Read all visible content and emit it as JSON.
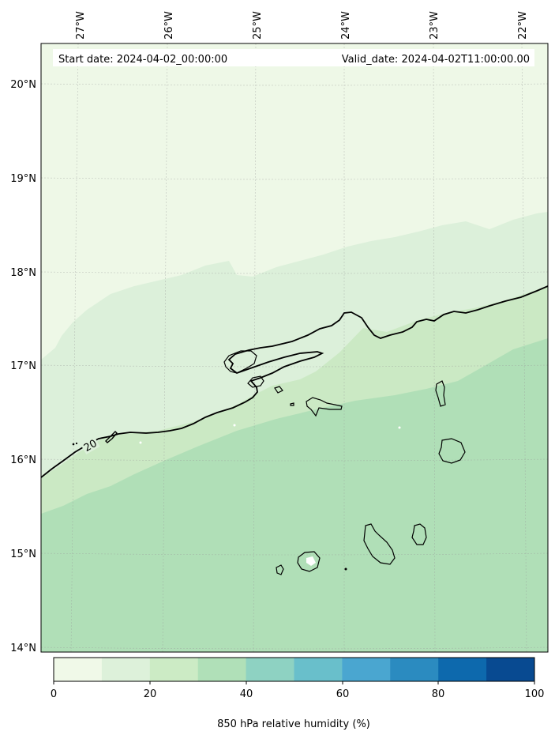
{
  "header": {
    "start_date": "Start date: 2024-04-02_00:00:00",
    "valid_date": "Valid_date: 2024-04-02T11:00:00.00"
  },
  "map": {
    "lon_labels": [
      "27°W",
      "26°W",
      "25°W",
      "24°W",
      "23°W",
      "22°W"
    ],
    "lat_labels": [
      "20°N",
      "19°N",
      "18°N",
      "17°N",
      "16°N",
      "15°N",
      "14°N"
    ],
    "contour_label": "20"
  },
  "colorbar": {
    "title": "850 hPa relative humidity (%)",
    "tick_labels": [
      "0",
      "20",
      "40",
      "60",
      "80",
      "100"
    ],
    "colors": [
      "#f0f9e8",
      "#ddf1da",
      "#ccebc5",
      "#b0e0b8",
      "#8ed2c2",
      "#69bfcb",
      "#4aa6d0",
      "#2b8bc0",
      "#0d69ad",
      "#084a91"
    ]
  }
}
